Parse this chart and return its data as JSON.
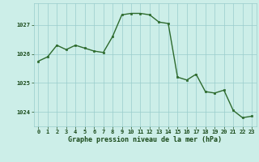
{
  "x": [
    0,
    1,
    2,
    3,
    4,
    5,
    6,
    7,
    8,
    9,
    10,
    11,
    12,
    13,
    14,
    15,
    16,
    17,
    18,
    19,
    20,
    21,
    22,
    23
  ],
  "y": [
    1025.75,
    1025.9,
    1026.3,
    1026.15,
    1026.3,
    1026.2,
    1026.1,
    1026.05,
    1026.6,
    1027.35,
    1027.4,
    1027.4,
    1027.35,
    1027.1,
    1027.05,
    1025.2,
    1025.1,
    1025.3,
    1024.7,
    1024.65,
    1024.75,
    1024.05,
    1023.8,
    1023.85
  ],
  "line_color": "#2d6a2d",
  "marker": "s",
  "marker_size": 1.8,
  "background_color": "#cceee8",
  "grid_color": "#99cccc",
  "xlabel": "Graphe pression niveau de la mer (hPa)",
  "xlabel_color": "#1a4a1a",
  "tick_color": "#1a4a1a",
  "ylim": [
    1023.5,
    1027.75
  ],
  "yticks": [
    1024,
    1025,
    1026,
    1027
  ],
  "xlim": [
    -0.5,
    23.5
  ],
  "xticks": [
    0,
    1,
    2,
    3,
    4,
    5,
    6,
    7,
    8,
    9,
    10,
    11,
    12,
    13,
    14,
    15,
    16,
    17,
    18,
    19,
    20,
    21,
    22,
    23
  ],
  "tick_fontsize": 5.0,
  "xlabel_fontsize": 6.0,
  "line_width": 1.0
}
